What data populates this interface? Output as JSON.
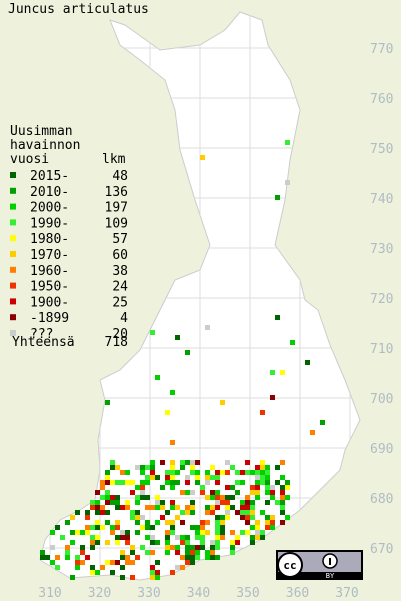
{
  "title": "Juncus articulatus",
  "legend": {
    "heading": [
      "Uusimman",
      "havainnon",
      "vuosi"
    ],
    "count_heading": "lkm",
    "entries": [
      {
        "label": "2015-",
        "count": 48,
        "color": "#006400"
      },
      {
        "label": "2010-",
        "count": 136,
        "color": "#00a000"
      },
      {
        "label": "2000-",
        "count": 197,
        "color": "#00d000"
      },
      {
        "label": "1990-",
        "count": 109,
        "color": "#33ee33"
      },
      {
        "label": "1980-",
        "count": 57,
        "color": "#ffff00"
      },
      {
        "label": "1970-",
        "count": 60,
        "color": "#ffcc00"
      },
      {
        "label": "1960-",
        "count": 38,
        "color": "#ff7f00"
      },
      {
        "label": "1950-",
        "count": 24,
        "color": "#ee3300"
      },
      {
        "label": "1900-",
        "count": 25,
        "color": "#cc0000"
      },
      {
        "label": "-1899",
        "count": 4,
        "color": "#8b0000"
      },
      {
        "label": "???",
        "count": 20,
        "color": "#cccccc"
      }
    ],
    "total": {
      "label": "Yhteensä",
      "count": 718
    }
  },
  "grid": {
    "y_labels": [
      "770",
      "760",
      "750",
      "740",
      "730",
      "720",
      "710",
      "700",
      "690",
      "680",
      "670"
    ],
    "x_labels": [
      "310",
      "320",
      "330",
      "340",
      "350",
      "360",
      "370"
    ]
  },
  "license": "BY"
}
